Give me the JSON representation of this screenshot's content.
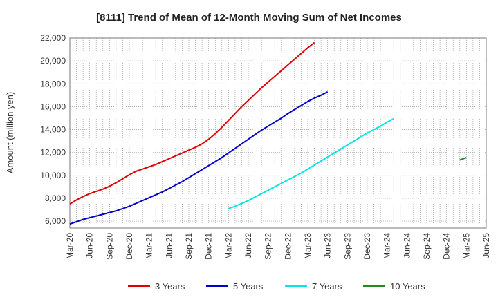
{
  "chart_data": {
    "type": "line",
    "title": "[8111]  Trend of Mean of 12-Month Moving Sum of Net Incomes",
    "xlabel": "",
    "ylabel": "Amount (million yen)",
    "ylim": [
      5400,
      22000
    ],
    "yticks": [
      6000,
      8000,
      10000,
      12000,
      14000,
      16000,
      18000,
      20000,
      22000
    ],
    "ytick_labels": [
      "6,000",
      "8,000",
      "10,000",
      "12,000",
      "14,000",
      "16,000",
      "18,000",
      "20,000",
      "22,000"
    ],
    "x_tick_labels": [
      "Mar-20",
      "Jun-20",
      "Sep-20",
      "Dec-20",
      "Mar-21",
      "Jun-21",
      "Sep-21",
      "Dec-21",
      "Mar-22",
      "Jun-22",
      "Sep-22",
      "Dec-22",
      "Mar-23",
      "Jun-23",
      "Sep-23",
      "Dec-23",
      "Mar-24",
      "Jun-24",
      "Sep-24",
      "Dec-24",
      "Mar-25",
      "Jun-25"
    ],
    "grid": true,
    "legend_position": "bottom",
    "series": [
      {
        "name": "3 Years",
        "color": "#e00000",
        "start": "Mar-20",
        "values": [
          7500,
          7850,
          8150,
          8400,
          8600,
          8800,
          9050,
          9350,
          9700,
          10050,
          10350,
          10550,
          10750,
          10950,
          11200,
          11450,
          11700,
          11950,
          12200,
          12450,
          12750,
          13150,
          13650,
          14200,
          14800,
          15400,
          16000,
          16550,
          17100,
          17650,
          18150,
          18650,
          19150,
          19650,
          20150,
          20650,
          21150,
          21600
        ]
      },
      {
        "name": "5 Years",
        "color": "#0000cc",
        "start": "Mar-20",
        "values": [
          5750,
          5950,
          6150,
          6300,
          6450,
          6600,
          6750,
          6900,
          7100,
          7300,
          7550,
          7800,
          8050,
          8300,
          8550,
          8850,
          9150,
          9450,
          9800,
          10150,
          10500,
          10850,
          11200,
          11550,
          11950,
          12350,
          12750,
          13150,
          13550,
          13950,
          14300,
          14650,
          15000,
          15400,
          15750,
          16100,
          16450,
          16750,
          17000,
          17300
        ]
      },
      {
        "name": "7 Years",
        "color": "#00e5e5",
        "start": "Mar-22",
        "values": [
          7100,
          7300,
          7550,
          7800,
          8100,
          8400,
          8700,
          9000,
          9300,
          9600,
          9900,
          10200,
          10550,
          10900,
          11250,
          11600,
          11950,
          12300,
          12650,
          13000,
          13350,
          13700,
          14000,
          14300,
          14650,
          14950
        ]
      },
      {
        "name": "10 Years",
        "color": "#228b22",
        "start": "Feb-25",
        "values": [
          11350,
          11550
        ]
      }
    ]
  }
}
